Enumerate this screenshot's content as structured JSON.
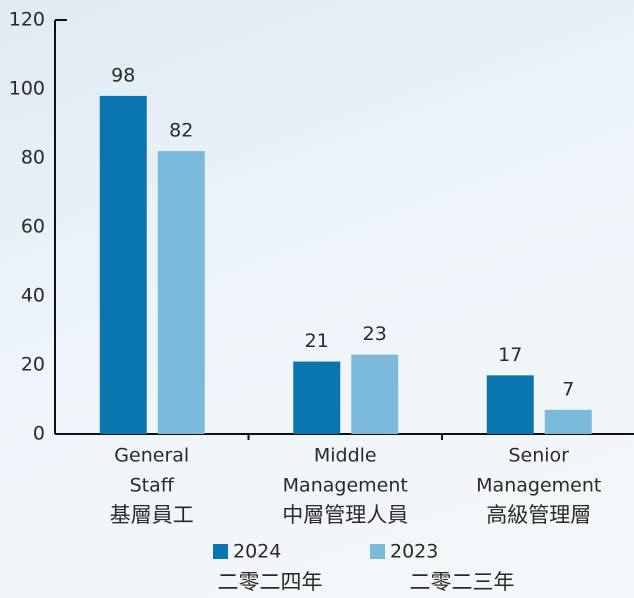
{
  "chart_data": {
    "type": "bar",
    "categories": [
      [
        "General",
        "Staff",
        "基層員工"
      ],
      [
        "Middle",
        "Management",
        "中層管理人員"
      ],
      [
        "Senior",
        "Management",
        "高級管理層"
      ]
    ],
    "series": [
      {
        "name": "2024",
        "name_zh": "二零二四年",
        "color": "#0a76b0",
        "values": [
          98,
          21,
          17
        ]
      },
      {
        "name": "2023",
        "name_zh": "二零二三年",
        "color": "#7cbadb",
        "values": [
          82,
          23,
          7
        ]
      }
    ],
    "ylim": [
      0,
      120
    ],
    "yticks": [
      0,
      20,
      40,
      60,
      80,
      100,
      120
    ]
  }
}
